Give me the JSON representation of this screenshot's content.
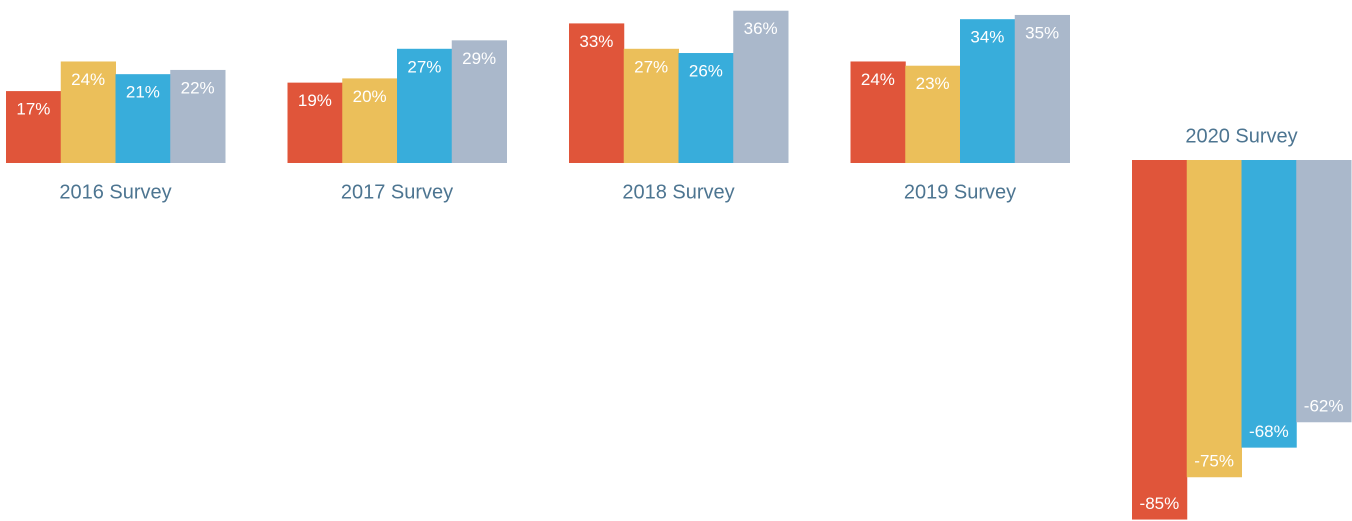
{
  "chart_data": {
    "type": "bar",
    "categories": [
      "2016 Survey",
      "2017 Survey",
      "2018 Survey",
      "2019 Survey",
      "2020 Survey"
    ],
    "series": [
      {
        "color": "#e0553a",
        "values": [
          17,
          19,
          33,
          24,
          -85
        ],
        "value_labels": [
          "17%",
          "19%",
          "33%",
          "24%",
          "-85%"
        ]
      },
      {
        "color": "#ebbf5a",
        "values": [
          24,
          20,
          27,
          23,
          -75
        ],
        "value_labels": [
          "24%",
          "20%",
          "27%",
          "23%",
          "-75%"
        ]
      },
      {
        "color": "#38addb",
        "values": [
          21,
          27,
          26,
          34,
          -68
        ],
        "value_labels": [
          "21%",
          "27%",
          "26%",
          "34%",
          "-68%"
        ]
      },
      {
        "color": "#aab8cb",
        "values": [
          22,
          29,
          36,
          35,
          -62
        ],
        "value_labels": [
          "22%",
          "29%",
          "36%",
          "35%",
          "-62%"
        ]
      }
    ]
  }
}
